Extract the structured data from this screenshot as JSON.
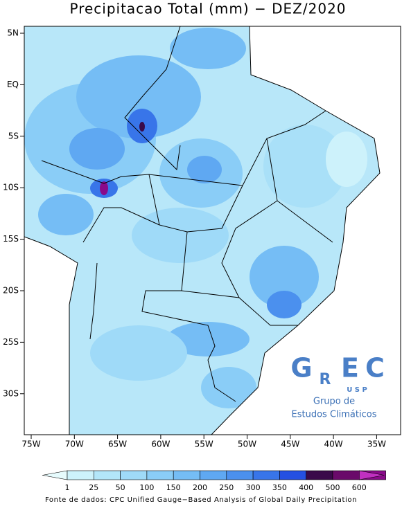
{
  "map": {
    "title": "Precipitacao Total (mm) − DEZ/2020",
    "lon_labels": [
      "75W",
      "70W",
      "65W",
      "60W",
      "55W",
      "50W",
      "45W",
      "40W",
      "35W"
    ],
    "lat_labels": [
      "5N",
      "EQ",
      "5S",
      "10S",
      "15S",
      "20S",
      "25S",
      "30S"
    ],
    "colorbar": {
      "labels": [
        "1",
        "25",
        "50",
        "100",
        "150",
        "200",
        "250",
        "300",
        "350",
        "400",
        "500",
        "600"
      ],
      "colors": [
        "#e6fbfd",
        "#cdf2fb",
        "#b3e6f9",
        "#9fdaf8",
        "#8acdf7",
        "#75bdf5",
        "#5fa8f2",
        "#4b90ee",
        "#3875e9",
        "#2550e2",
        "#3a0a4a",
        "#6a0a6a",
        "#8a0a8a",
        "#c030c0"
      ]
    },
    "logo": {
      "letters": [
        "G",
        "R",
        "E",
        "C"
      ],
      "sub": "U S P",
      "line1": "Grupo de",
      "line2": "Estudos Climáticos"
    },
    "source": "Fonte de dados: CPC Unified Gauge−Based Analysis of Global Daily Precipitation"
  }
}
